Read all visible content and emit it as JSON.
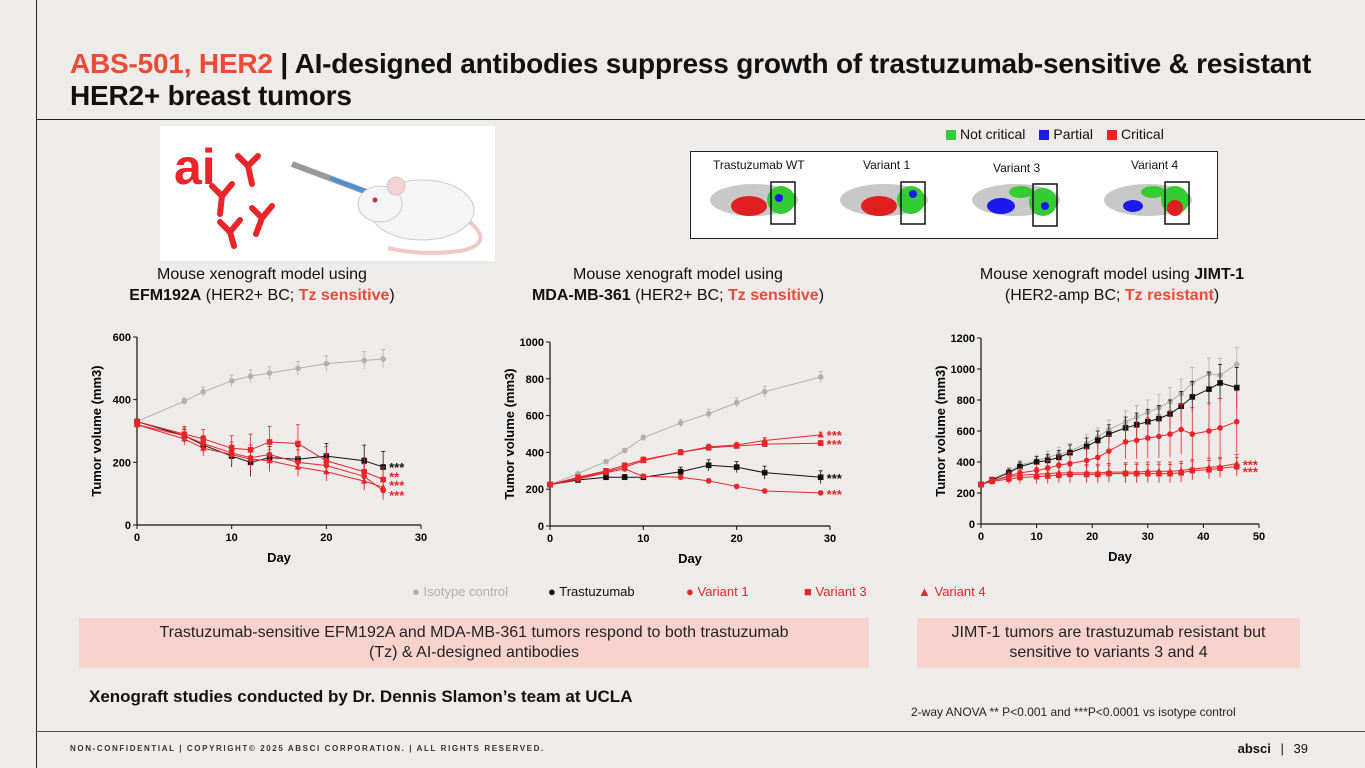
{
  "title": {
    "accent": "ABS-501, HER2",
    "separator": " | ",
    "main": "AI-designed antibodies suppress growth of trastuzumab-sensitive & resistant HER2+ breast tumors"
  },
  "epitope_legend": [
    {
      "label": "Not critical",
      "color": "#33cc33"
    },
    {
      "label": "Partial",
      "color": "#1a1aee"
    },
    {
      "label": "Critical",
      "color": "#ee2222"
    }
  ],
  "variant_labels": [
    "Trastuzumab WT",
    "Variant 1",
    "Variant 3",
    "Variant 4"
  ],
  "logo_text": "ai",
  "captions": {
    "c1_line1": "Mouse xenograft model using",
    "c1_bold": "EFM192A",
    "c1_mid": " (HER2+ BC; ",
    "c1_red": "Tz sensitive",
    "c1_end": ")",
    "c2_line1": "Mouse xenograft model using",
    "c2_bold": "MDA-MB-361",
    "c2_mid": " (HER2+ BC; ",
    "c2_red": "Tz sensitive",
    "c2_end": ")",
    "c3_line1": "Mouse xenograft model using ",
    "c3_bold": "JIMT-1",
    "c3_mid": "(HER2-amp BC; ",
    "c3_red": "Tz resistant",
    "c3_end": ")"
  },
  "colors": {
    "isotype": "#b0b0b0",
    "trastuzumab": "#111111",
    "variant": "#e8252a",
    "accent": "#f04a36"
  },
  "chart_data": [
    {
      "type": "line",
      "title": "EFM192A",
      "xlabel": "Day",
      "ylabel": "Tumor volume (mm3)",
      "xlim": [
        0,
        30
      ],
      "ylim": [
        0,
        600
      ],
      "xticks": [
        0,
        10,
        20,
        30
      ],
      "yticks": [
        0,
        200,
        400,
        600
      ],
      "series": [
        {
          "name": "Isotype control",
          "color": "#b0b0b0",
          "marker": "circle",
          "x": [
            0,
            5,
            7,
            10,
            12,
            14,
            17,
            20,
            24,
            26
          ],
          "y": [
            330,
            395,
            425,
            460,
            475,
            485,
            500,
            515,
            525,
            530
          ],
          "err": [
            8,
            10,
            15,
            18,
            20,
            20,
            22,
            25,
            28,
            30
          ]
        },
        {
          "name": "Trastuzumab",
          "color": "#111111",
          "marker": "square",
          "x": [
            0,
            5,
            7,
            10,
            12,
            14,
            17,
            20,
            24,
            26
          ],
          "y": [
            330,
            285,
            255,
            220,
            200,
            215,
            210,
            220,
            205,
            185
          ],
          "err": [
            8,
            20,
            25,
            35,
            45,
            35,
            40,
            40,
            50,
            50
          ]
        },
        {
          "name": "Variant 1",
          "color": "#e8252a",
          "marker": "circle",
          "x": [
            0,
            5,
            7,
            10,
            12,
            14,
            17,
            20,
            24,
            26
          ],
          "y": [
            320,
            285,
            260,
            230,
            215,
            225,
            200,
            190,
            155,
            110
          ],
          "err": [
            8,
            25,
            25,
            35,
            40,
            35,
            40,
            35,
            40,
            30
          ]
        },
        {
          "name": "Variant 3",
          "color": "#e8252a",
          "marker": "square",
          "x": [
            0,
            5,
            7,
            10,
            12,
            14,
            17,
            20,
            24,
            26
          ],
          "y": [
            330,
            290,
            275,
            245,
            240,
            265,
            260,
            205,
            170,
            145
          ],
          "err": [
            8,
            25,
            30,
            40,
            50,
            50,
            60,
            45,
            45,
            40
          ]
        },
        {
          "name": "Variant 4",
          "color": "#e8252a",
          "marker": "triangle",
          "x": [
            0,
            5,
            7,
            10,
            12,
            14,
            17,
            20,
            24,
            26
          ],
          "y": [
            320,
            275,
            245,
            225,
            210,
            205,
            185,
            170,
            140,
            120
          ],
          "err": [
            8,
            20,
            25,
            30,
            35,
            35,
            30,
            30,
            30,
            30
          ]
        }
      ],
      "annotations": [
        {
          "text": "***",
          "y": 185,
          "color": "#111111"
        },
        {
          "text": "**",
          "y": 155,
          "color": "#e8252a"
        },
        {
          "text": "***",
          "y": 128,
          "color": "#e8252a"
        },
        {
          "text": "***",
          "y": 95,
          "color": "#e8252a"
        }
      ]
    },
    {
      "type": "line",
      "title": "MDA-MB-361",
      "xlabel": "Day",
      "ylabel": "Tumor volume (mm3)",
      "xlim": [
        0,
        30
      ],
      "ylim": [
        0,
        1000
      ],
      "xticks": [
        0,
        10,
        20,
        30
      ],
      "yticks": [
        0,
        200,
        400,
        600,
        800,
        1000
      ],
      "series": [
        {
          "name": "Isotype control",
          "color": "#b0b0b0",
          "marker": "circle",
          "x": [
            0,
            3,
            6,
            8,
            10,
            14,
            17,
            20,
            23,
            29
          ],
          "y": [
            225,
            285,
            350,
            410,
            480,
            560,
            610,
            670,
            730,
            810
          ],
          "err": [
            5,
            8,
            10,
            12,
            15,
            20,
            25,
            25,
            30,
            30
          ]
        },
        {
          "name": "Trastuzumab",
          "color": "#111111",
          "marker": "square",
          "x": [
            0,
            3,
            6,
            8,
            10,
            14,
            17,
            20,
            23,
            29
          ],
          "y": [
            225,
            250,
            265,
            265,
            265,
            295,
            330,
            320,
            290,
            265
          ],
          "err": [
            5,
            10,
            12,
            15,
            15,
            25,
            30,
            30,
            35,
            35
          ]
        },
        {
          "name": "Variant 1",
          "color": "#e8252a",
          "marker": "circle",
          "x": [
            0,
            3,
            6,
            8,
            10,
            14,
            17,
            20,
            23,
            29
          ],
          "y": [
            225,
            255,
            290,
            310,
            270,
            265,
            245,
            215,
            190,
            180
          ],
          "err": [
            5,
            10,
            10,
            12,
            12,
            12,
            12,
            10,
            10,
            10
          ]
        },
        {
          "name": "Variant 3",
          "color": "#e8252a",
          "marker": "square",
          "x": [
            0,
            3,
            6,
            8,
            10,
            14,
            17,
            20,
            23,
            29
          ],
          "y": [
            225,
            265,
            300,
            330,
            360,
            400,
            425,
            435,
            445,
            450
          ],
          "err": [
            5,
            10,
            12,
            12,
            15,
            15,
            15,
            15,
            15,
            15
          ]
        },
        {
          "name": "Variant 4",
          "color": "#e8252a",
          "marker": "triangle",
          "x": [
            0,
            3,
            6,
            8,
            10,
            14,
            17,
            20,
            23,
            29
          ],
          "y": [
            225,
            260,
            295,
            320,
            355,
            400,
            430,
            440,
            465,
            495
          ],
          "err": [
            5,
            10,
            12,
            12,
            15,
            15,
            15,
            15,
            15,
            15
          ]
        }
      ],
      "annotations": [
        {
          "text": "***",
          "y": 495,
          "color": "#e8252a"
        },
        {
          "text": "***",
          "y": 445,
          "color": "#e8252a"
        },
        {
          "text": "***",
          "y": 260,
          "color": "#111111"
        },
        {
          "text": "***",
          "y": 175,
          "color": "#e8252a"
        }
      ]
    },
    {
      "type": "line",
      "title": "JIMT-1",
      "xlabel": "Day",
      "ylabel": "Tumor volume (mm3)",
      "xlim": [
        0,
        50
      ],
      "ylim": [
        0,
        1200
      ],
      "xticks": [
        0,
        10,
        20,
        30,
        40,
        50
      ],
      "yticks": [
        0,
        200,
        400,
        600,
        800,
        1000,
        1200
      ],
      "series": [
        {
          "name": "Isotype control",
          "color": "#b0b0b0",
          "marker": "circle",
          "x": [
            0,
            2,
            5,
            7,
            10,
            12,
            14,
            16,
            19,
            21,
            23,
            26,
            28,
            30,
            32,
            34,
            36,
            38,
            41,
            43,
            46
          ],
          "y": [
            255,
            290,
            340,
            380,
            410,
            430,
            450,
            470,
            520,
            560,
            610,
            660,
            690,
            720,
            750,
            790,
            840,
            910,
            970,
            960,
            1030
          ],
          "err": [
            5,
            15,
            25,
            30,
            35,
            40,
            45,
            50,
            55,
            60,
            60,
            70,
            75,
            80,
            85,
            90,
            95,
            100,
            100,
            110,
            110
          ]
        },
        {
          "name": "Trastuzumab",
          "color": "#111111",
          "marker": "square",
          "x": [
            0,
            2,
            5,
            7,
            10,
            12,
            14,
            16,
            19,
            21,
            23,
            26,
            28,
            30,
            32,
            34,
            36,
            38,
            41,
            43,
            46
          ],
          "y": [
            255,
            285,
            330,
            370,
            400,
            410,
            430,
            460,
            500,
            540,
            580,
            620,
            640,
            660,
            680,
            710,
            760,
            820,
            870,
            910,
            880
          ],
          "err": [
            5,
            15,
            25,
            30,
            35,
            40,
            45,
            50,
            55,
            60,
            60,
            70,
            75,
            80,
            85,
            90,
            95,
            100,
            110,
            120,
            130
          ]
        },
        {
          "name": "Variant 1",
          "color": "#e8252a",
          "marker": "circle",
          "x": [
            0,
            2,
            5,
            7,
            10,
            12,
            14,
            16,
            19,
            21,
            23,
            26,
            28,
            30,
            32,
            34,
            36,
            38,
            41,
            43,
            46
          ],
          "y": [
            255,
            280,
            310,
            330,
            345,
            360,
            380,
            390,
            410,
            430,
            470,
            530,
            540,
            555,
            565,
            580,
            610,
            580,
            600,
            620,
            660
          ],
          "err": [
            5,
            15,
            25,
            30,
            40,
            50,
            60,
            70,
            80,
            90,
            100,
            110,
            120,
            130,
            140,
            150,
            160,
            170,
            180,
            190,
            200
          ]
        },
        {
          "name": "Variant 3",
          "color": "#e8252a",
          "marker": "square",
          "x": [
            0,
            2,
            5,
            7,
            10,
            12,
            14,
            16,
            19,
            21,
            23,
            26,
            28,
            30,
            32,
            34,
            36,
            38,
            41,
            43,
            46
          ],
          "y": [
            255,
            275,
            290,
            300,
            305,
            310,
            315,
            320,
            320,
            320,
            325,
            325,
            325,
            325,
            325,
            325,
            330,
            345,
            350,
            360,
            370
          ],
          "err": [
            5,
            20,
            30,
            40,
            45,
            50,
            50,
            55,
            55,
            55,
            55,
            60,
            60,
            60,
            60,
            60,
            60,
            60,
            60,
            60,
            60
          ]
        },
        {
          "name": "Variant 4",
          "color": "#e8252a",
          "marker": "triangle",
          "x": [
            0,
            2,
            5,
            7,
            10,
            12,
            14,
            16,
            19,
            21,
            23,
            26,
            28,
            30,
            32,
            34,
            36,
            38,
            41,
            43,
            46
          ],
          "y": [
            255,
            280,
            305,
            315,
            320,
            325,
            330,
            330,
            330,
            330,
            335,
            335,
            335,
            340,
            340,
            340,
            345,
            355,
            365,
            370,
            390
          ],
          "err": [
            5,
            20,
            30,
            40,
            45,
            50,
            50,
            55,
            55,
            55,
            55,
            60,
            60,
            60,
            60,
            60,
            60,
            60,
            60,
            60,
            60
          ]
        }
      ],
      "annotations": [
        {
          "text": "***",
          "y": 385,
          "color": "#e8252a"
        },
        {
          "text": "***",
          "y": 340,
          "color": "#e8252a"
        }
      ]
    }
  ],
  "chart_legend": [
    {
      "symbol": "●",
      "label": "Isotype control",
      "color": "#b0b0b0"
    },
    {
      "symbol": "●",
      "label": "Trastuzumab",
      "color": "#111111"
    },
    {
      "symbol": "●",
      "label": "Variant 1",
      "color": "#e8252a"
    },
    {
      "symbol": "■",
      "label": "Variant 3",
      "color": "#e8252a"
    },
    {
      "symbol": "▲",
      "label": "Variant 4",
      "color": "#e8252a"
    }
  ],
  "boxes": {
    "left": "Trastuzumab-sensitive EFM192A and MDA-MB-361 tumors respond to both trastuzumab (Tz) & AI-designed antibodies",
    "right": "JIMT-1 tumors are trastuzumab resistant but sensitive to variants 3 and 4"
  },
  "credit": "Xenograft studies conducted by Dr. Dennis Slamon’s team at UCLA",
  "stats_note": "2-way ANOVA ** P<0.001 and ***P<0.0001 vs isotype control",
  "footer": {
    "left": "NON-CONFIDENTIAL  |  COPYRIGHT© 2025 ABSCI CORPORATION.   |  ALL RIGHTS RESERVED.",
    "brand": "absci",
    "separator": "|",
    "page": "39"
  }
}
